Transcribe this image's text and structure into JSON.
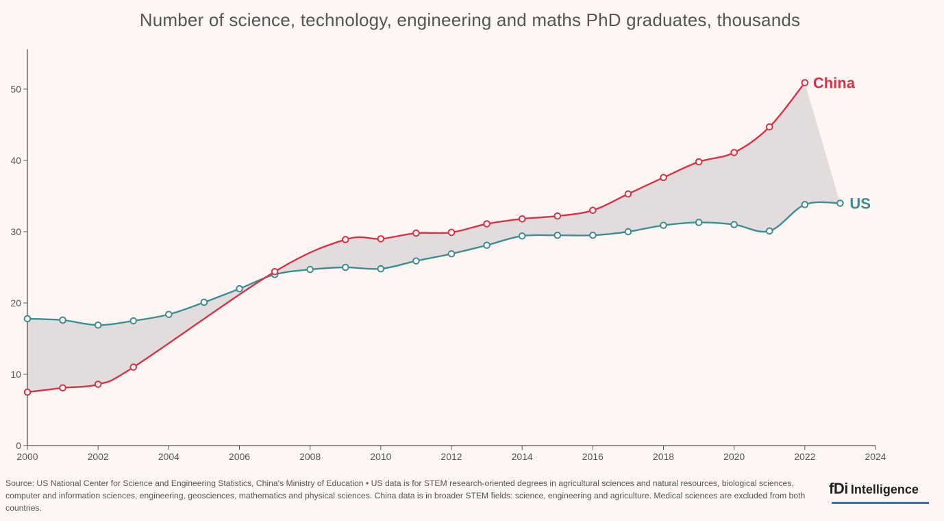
{
  "chart_data": {
    "type": "line",
    "title": "Number of science, technology, engineering and maths PhD graduates, thousands",
    "xlabel": "",
    "ylabel": "",
    "xlim": [
      2000,
      2024
    ],
    "ylim": [
      0,
      55
    ],
    "xticks": [
      2000,
      2002,
      2004,
      2006,
      2008,
      2010,
      2012,
      2014,
      2016,
      2018,
      2020,
      2022,
      2024
    ],
    "yticks": [
      0,
      10,
      20,
      30,
      40,
      50
    ],
    "fill_between_series": true,
    "series": [
      {
        "name": "China",
        "color": "#d6334b",
        "x": [
          2000,
          2001,
          2002,
          2003,
          2007,
          2009,
          2010,
          2011,
          2012,
          2013,
          2014,
          2015,
          2016,
          2017,
          2018,
          2019,
          2020,
          2021,
          2022
        ],
        "values": [
          7.5,
          8.1,
          8.6,
          11.0,
          24.4,
          28.9,
          29.0,
          29.8,
          29.9,
          31.1,
          31.8,
          32.2,
          33.0,
          35.3,
          37.6,
          39.8,
          41.1,
          44.7,
          50.9
        ]
      },
      {
        "name": "US",
        "color": "#3d8d94",
        "x": [
          2000,
          2001,
          2002,
          2003,
          2004,
          2005,
          2006,
          2007,
          2008,
          2009,
          2010,
          2011,
          2012,
          2013,
          2014,
          2015,
          2016,
          2017,
          2018,
          2019,
          2020,
          2021,
          2022,
          2023
        ],
        "values": [
          17.8,
          17.6,
          16.9,
          17.5,
          18.4,
          20.1,
          22.0,
          24.0,
          24.7,
          25.0,
          24.8,
          25.9,
          26.9,
          28.1,
          29.4,
          29.5,
          29.5,
          30.0,
          30.9,
          31.3,
          31.0,
          30.1,
          33.8,
          34.0
        ]
      }
    ]
  },
  "footer": {
    "source": "Source: US National Center for Science and Engineering Statistics, China's Ministry of Education • US data is for STEM research-oriented degrees in agricultural sciences and natural resources, biological sciences, computer and information sciences, engineering, geosciences, mathematics and physical sciences. China data is in broader STEM fields: science, engineering and agriculture. Medical sciences are excluded from both countries.",
    "brand_logo": "fDi",
    "brand_name": "Intelligence"
  },
  "colors": {
    "background": "#fdf6f3",
    "fill_gap": "#e2dddc",
    "axis": "#555555",
    "brand_underline": "#3a6fb0"
  }
}
